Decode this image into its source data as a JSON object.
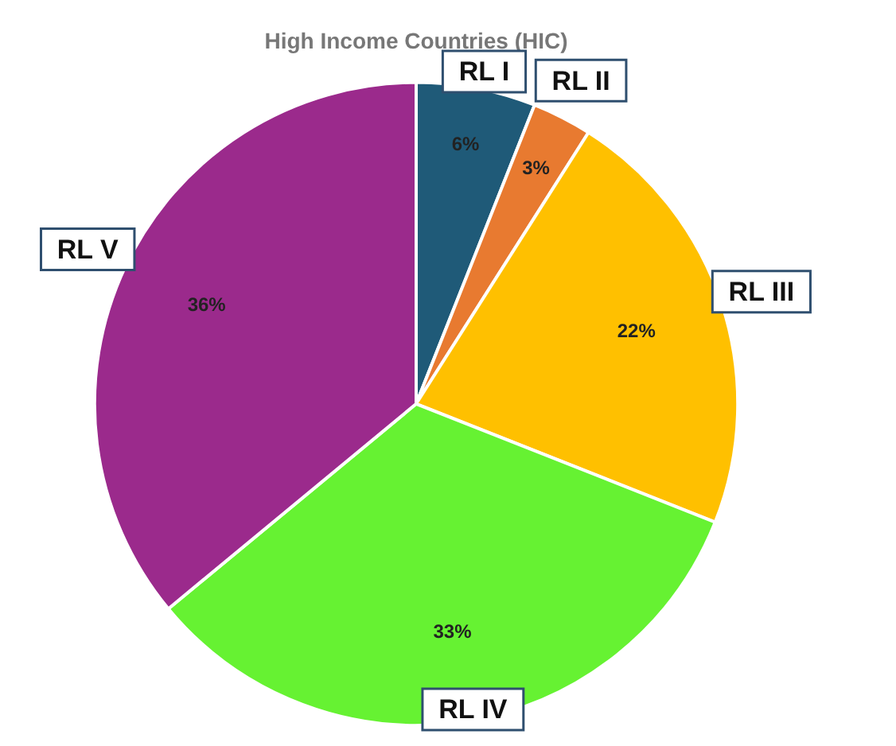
{
  "chart_data": {
    "type": "pie",
    "title": "High Income Countries (HIC)",
    "categories": [
      "RL I",
      "RL II",
      "RL III",
      "RL IV",
      "RL V"
    ],
    "values": [
      6,
      3,
      22,
      33,
      36
    ],
    "value_labels": [
      "6%",
      "3%",
      "22%",
      "33%",
      "36%"
    ],
    "colors": [
      "#1f5a78",
      "#e87a30",
      "#ffc000",
      "#66f232",
      "#9b2a8c"
    ],
    "legend": false
  }
}
